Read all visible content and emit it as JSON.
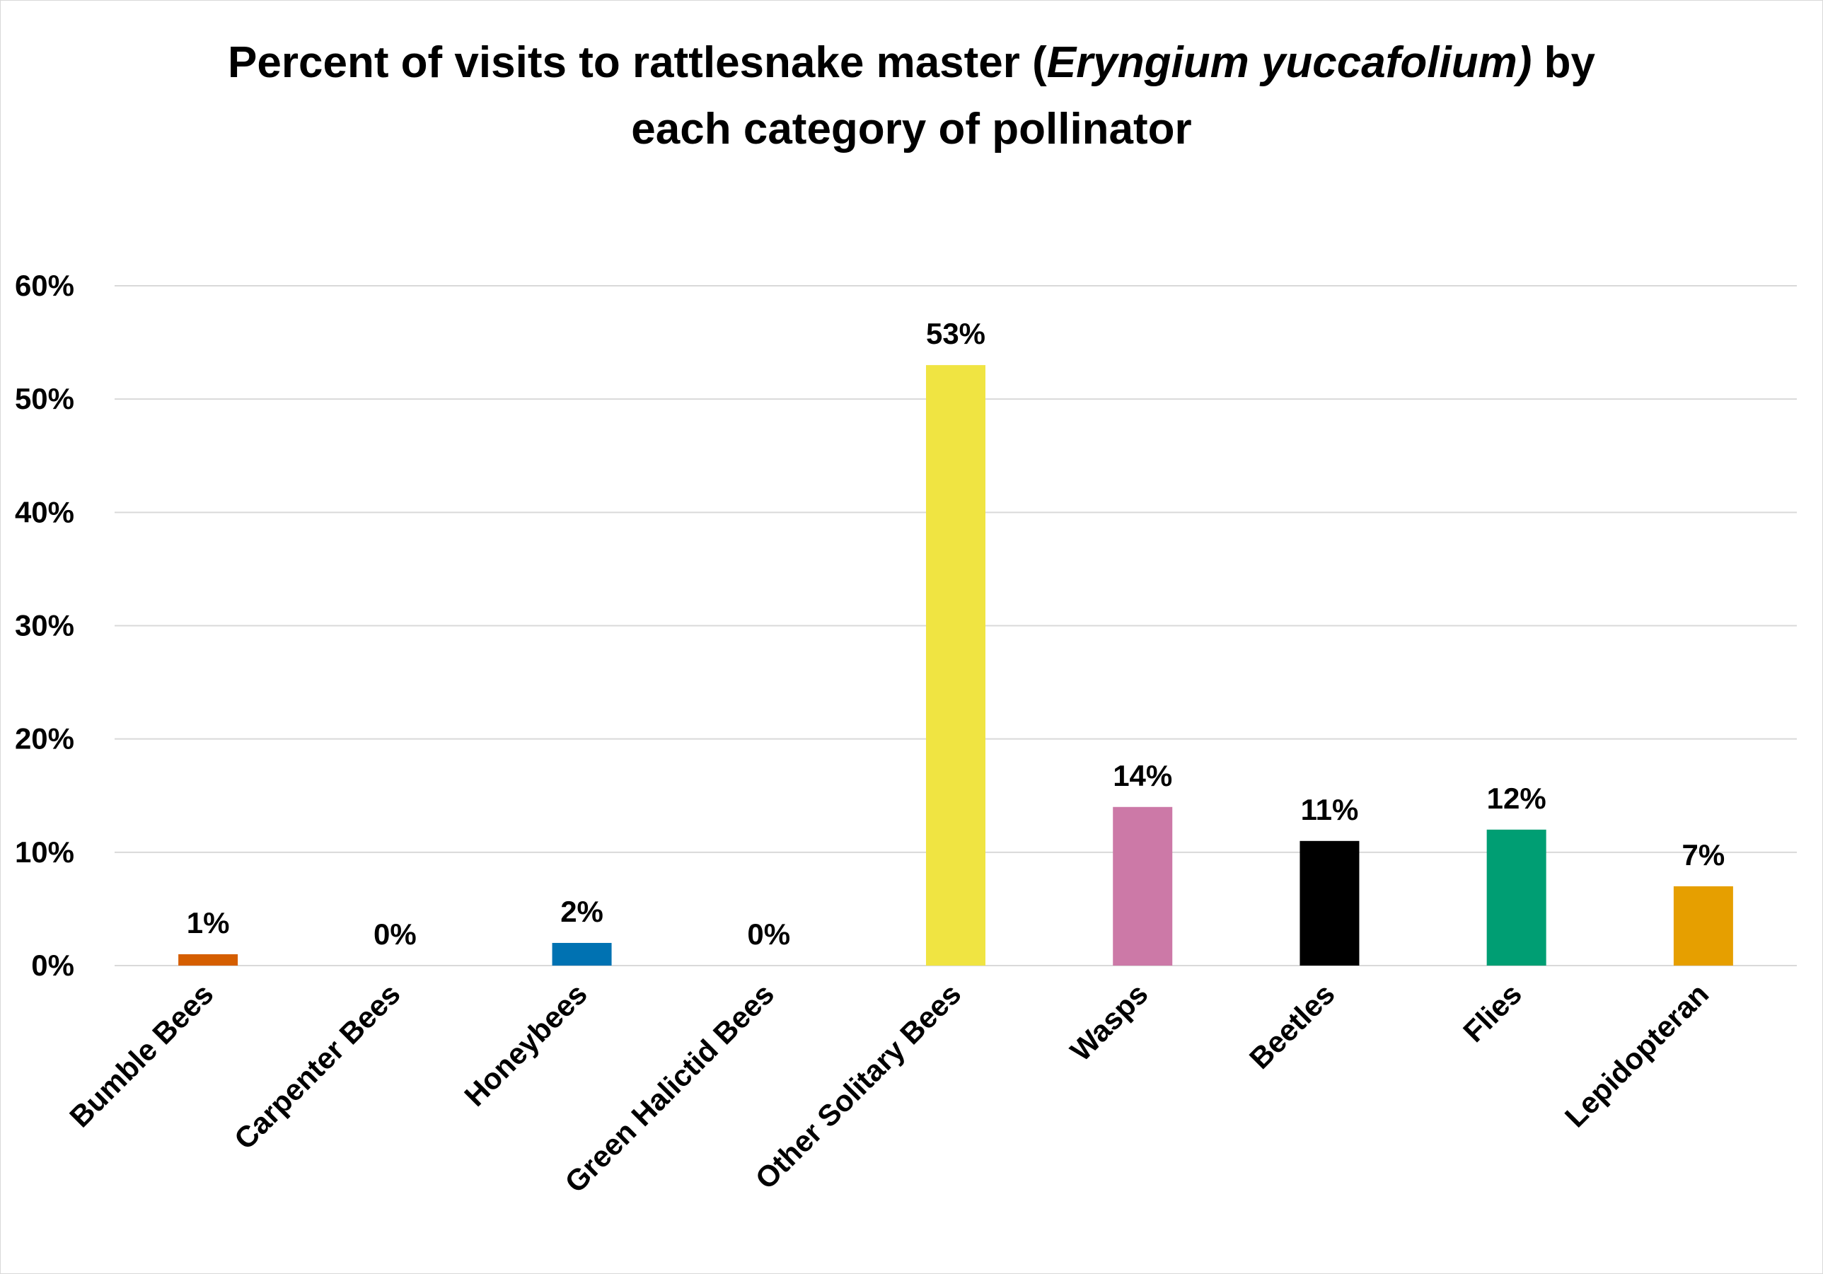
{
  "chart_data": {
    "type": "bar",
    "title": {
      "part1": "Percent of visits to rattlesnake master (",
      "italic": "Eryngium yuccafolium)",
      "part2": " by",
      "line2": "each category of pollinator"
    },
    "xlabel": "",
    "ylabel": "",
    "ylim": [
      0,
      60
    ],
    "yticks": [
      "0%",
      "10%",
      "20%",
      "30%",
      "40%",
      "50%",
      "60%"
    ],
    "grid": true,
    "legend": "none",
    "categories": [
      "Bumble Bees",
      "Carpenter Bees",
      "Honeybees",
      "Green Halictid Bees",
      "Other Solitary Bees",
      "Wasps",
      "Beetles",
      "Flies",
      "Lepidopteran"
    ],
    "values": [
      1,
      0,
      2,
      0,
      53,
      14,
      11,
      12,
      7
    ],
    "data_labels": [
      "1%",
      "0%",
      "2%",
      "0%",
      "53%",
      "14%",
      "11%",
      "12%",
      "7%"
    ],
    "colors": [
      "#D55E00",
      "#CC79A7",
      "#0072B2",
      "#009E73",
      "#F0E442",
      "#CC79A7",
      "#000000",
      "#009E73",
      "#E69F00"
    ]
  }
}
